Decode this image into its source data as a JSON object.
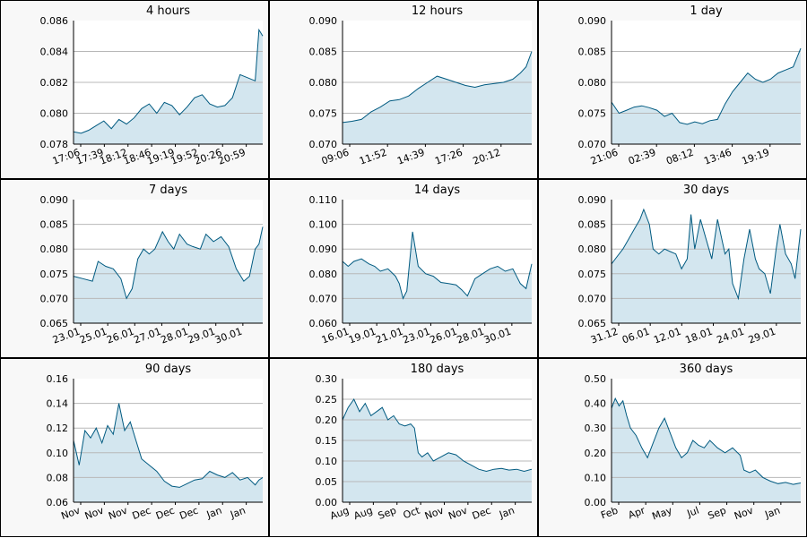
{
  "colors": {
    "line": "#005a80",
    "fill": "#d3e6ef",
    "grid": "#b8b8b8",
    "panel_bg": "#f8f8f8"
  },
  "chart_data": [
    {
      "type": "area",
      "title": "4 hours",
      "ylim": [
        0.078,
        0.086
      ],
      "yticks": [
        "0.078",
        "0.080",
        "0.082",
        "0.084",
        "0.086"
      ],
      "xticks": [
        "17:06",
        "17:39",
        "18:12",
        "18:46",
        "19:19",
        "19:52",
        "20:26",
        "20:59"
      ],
      "grid": true,
      "series": [
        {
          "x": [
            0,
            0.04,
            0.08,
            0.12,
            0.16,
            0.2,
            0.24,
            0.28,
            0.32,
            0.36,
            0.4,
            0.44,
            0.48,
            0.52,
            0.56,
            0.6,
            0.64,
            0.68,
            0.72,
            0.76,
            0.8,
            0.84,
            0.88,
            0.92,
            0.94,
            0.96,
            0.98,
            1.0
          ],
          "values": [
            0.0788,
            0.0787,
            0.0789,
            0.0792,
            0.0795,
            0.079,
            0.0796,
            0.0793,
            0.0797,
            0.0803,
            0.0806,
            0.08,
            0.0807,
            0.0805,
            0.0799,
            0.0804,
            0.081,
            0.0812,
            0.0806,
            0.0804,
            0.0805,
            0.081,
            0.0825,
            0.0823,
            0.0822,
            0.0821,
            0.0854,
            0.085
          ]
        }
      ]
    },
    {
      "type": "area",
      "title": "12 hours",
      "ylim": [
        0.07,
        0.09
      ],
      "yticks": [
        "0.070",
        "0.075",
        "0.080",
        "0.085",
        "0.090"
      ],
      "xticks": [
        "09:06",
        "11:52",
        "14:39",
        "17:26",
        "20:12"
      ],
      "grid": true,
      "series": [
        {
          "x": [
            0,
            0.05,
            0.1,
            0.15,
            0.2,
            0.25,
            0.3,
            0.35,
            0.4,
            0.45,
            0.5,
            0.55,
            0.6,
            0.65,
            0.7,
            0.75,
            0.8,
            0.85,
            0.9,
            0.94,
            0.97,
            1.0
          ],
          "values": [
            0.0735,
            0.0737,
            0.074,
            0.0752,
            0.076,
            0.077,
            0.0772,
            0.0778,
            0.079,
            0.08,
            0.081,
            0.0805,
            0.08,
            0.0795,
            0.0792,
            0.0796,
            0.0798,
            0.08,
            0.0805,
            0.0815,
            0.0825,
            0.085
          ]
        }
      ]
    },
    {
      "type": "area",
      "title": "1 day",
      "ylim": [
        0.07,
        0.09
      ],
      "yticks": [
        "0.070",
        "0.075",
        "0.080",
        "0.085",
        "0.090"
      ],
      "xticks": [
        "21:06",
        "02:39",
        "08:12",
        "13:46",
        "19:19"
      ],
      "grid": true,
      "series": [
        {
          "x": [
            0,
            0.04,
            0.08,
            0.12,
            0.16,
            0.2,
            0.24,
            0.28,
            0.32,
            0.36,
            0.4,
            0.44,
            0.48,
            0.52,
            0.56,
            0.6,
            0.64,
            0.68,
            0.72,
            0.76,
            0.8,
            0.84,
            0.88,
            0.92,
            0.96,
            1.0
          ],
          "values": [
            0.0768,
            0.075,
            0.0755,
            0.076,
            0.0762,
            0.0759,
            0.0755,
            0.0745,
            0.075,
            0.0735,
            0.0732,
            0.0736,
            0.0733,
            0.0738,
            0.074,
            0.0765,
            0.0785,
            0.08,
            0.0815,
            0.0805,
            0.08,
            0.0805,
            0.0815,
            0.082,
            0.0825,
            0.0855
          ]
        }
      ]
    },
    {
      "type": "area",
      "title": "7 days",
      "ylim": [
        0.065,
        0.09
      ],
      "yticks": [
        "0.065",
        "0.070",
        "0.075",
        "0.080",
        "0.085",
        "0.090"
      ],
      "xticks": [
        "23.01",
        "25.01",
        "26.01",
        "27.01",
        "28.01",
        "29.01",
        "30.01"
      ],
      "grid": true,
      "series": [
        {
          "x": [
            0,
            0.05,
            0.1,
            0.13,
            0.17,
            0.21,
            0.25,
            0.28,
            0.31,
            0.34,
            0.37,
            0.4,
            0.43,
            0.47,
            0.5,
            0.53,
            0.56,
            0.6,
            0.63,
            0.67,
            0.7,
            0.74,
            0.78,
            0.82,
            0.86,
            0.9,
            0.93,
            0.96,
            0.98,
            1.0
          ],
          "values": [
            0.0745,
            0.074,
            0.0735,
            0.0775,
            0.0765,
            0.076,
            0.074,
            0.07,
            0.072,
            0.078,
            0.08,
            0.079,
            0.08,
            0.0835,
            0.0815,
            0.08,
            0.083,
            0.081,
            0.0805,
            0.08,
            0.083,
            0.0815,
            0.0825,
            0.0805,
            0.076,
            0.0735,
            0.0745,
            0.08,
            0.081,
            0.0845
          ]
        }
      ]
    },
    {
      "type": "area",
      "title": "14 days",
      "ylim": [
        0.06,
        0.11
      ],
      "yticks": [
        "0.060",
        "0.070",
        "0.080",
        "0.090",
        "0.100",
        "0.110"
      ],
      "xticks": [
        "16.01",
        "19.01",
        "21.01",
        "23.01",
        "26.01",
        "28.01",
        "30.01"
      ],
      "grid": true,
      "series": [
        {
          "x": [
            0,
            0.03,
            0.06,
            0.1,
            0.14,
            0.17,
            0.2,
            0.24,
            0.28,
            0.3,
            0.32,
            0.34,
            0.37,
            0.4,
            0.44,
            0.48,
            0.52,
            0.56,
            0.6,
            0.63,
            0.66,
            0.7,
            0.74,
            0.78,
            0.82,
            0.86,
            0.9,
            0.94,
            0.97,
            1.0
          ],
          "values": [
            0.085,
            0.083,
            0.085,
            0.086,
            0.084,
            0.083,
            0.081,
            0.082,
            0.079,
            0.076,
            0.07,
            0.073,
            0.097,
            0.083,
            0.08,
            0.079,
            0.0765,
            0.076,
            0.0755,
            0.0735,
            0.071,
            0.078,
            0.08,
            0.082,
            0.083,
            0.081,
            0.082,
            0.076,
            0.074,
            0.084
          ]
        }
      ]
    },
    {
      "type": "area",
      "title": "30 days",
      "ylim": [
        0.065,
        0.09
      ],
      "yticks": [
        "0.065",
        "0.070",
        "0.075",
        "0.080",
        "0.085",
        "0.090"
      ],
      "xticks": [
        "31.12",
        "06.01",
        "12.01",
        "18.01",
        "24.01",
        "29.01"
      ],
      "grid": true,
      "series": [
        {
          "x": [
            0,
            0.03,
            0.06,
            0.09,
            0.12,
            0.15,
            0.17,
            0.2,
            0.22,
            0.25,
            0.28,
            0.31,
            0.34,
            0.37,
            0.4,
            0.42,
            0.44,
            0.47,
            0.5,
            0.53,
            0.56,
            0.6,
            0.62,
            0.64,
            0.67,
            0.7,
            0.73,
            0.76,
            0.78,
            0.81,
            0.84,
            0.87,
            0.89,
            0.92,
            0.95,
            0.97,
            1.0
          ],
          "values": [
            0.077,
            0.0785,
            0.08,
            0.082,
            0.084,
            0.086,
            0.088,
            0.085,
            0.08,
            0.079,
            0.08,
            0.0795,
            0.079,
            0.076,
            0.078,
            0.087,
            0.08,
            0.086,
            0.082,
            0.078,
            0.086,
            0.079,
            0.08,
            0.073,
            0.07,
            0.078,
            0.084,
            0.078,
            0.076,
            0.075,
            0.071,
            0.08,
            0.085,
            0.079,
            0.077,
            0.074,
            0.084
          ]
        }
      ]
    },
    {
      "type": "area",
      "title": "90 days",
      "ylim": [
        0.06,
        0.16
      ],
      "yticks": [
        "0.06",
        "0.08",
        "0.10",
        "0.12",
        "0.14",
        "0.16"
      ],
      "xticks": [
        "Nov",
        "Nov",
        "Nov",
        "Dec",
        "Dec",
        "Dec",
        "Jan",
        "Jan"
      ],
      "grid": true,
      "series": [
        {
          "x": [
            0,
            0.03,
            0.06,
            0.09,
            0.12,
            0.15,
            0.18,
            0.21,
            0.24,
            0.27,
            0.3,
            0.33,
            0.36,
            0.4,
            0.44,
            0.48,
            0.52,
            0.56,
            0.6,
            0.64,
            0.68,
            0.72,
            0.76,
            0.8,
            0.84,
            0.88,
            0.92,
            0.96,
            0.98,
            1.0
          ],
          "values": [
            0.11,
            0.09,
            0.118,
            0.112,
            0.12,
            0.108,
            0.122,
            0.115,
            0.14,
            0.118,
            0.125,
            0.11,
            0.095,
            0.09,
            0.085,
            0.077,
            0.073,
            0.072,
            0.075,
            0.078,
            0.079,
            0.085,
            0.082,
            0.08,
            0.084,
            0.078,
            0.08,
            0.074,
            0.078,
            0.08
          ]
        }
      ]
    },
    {
      "type": "area",
      "title": "180 days",
      "ylim": [
        0.0,
        0.3
      ],
      "yticks": [
        "0.00",
        "0.05",
        "0.10",
        "0.15",
        "0.20",
        "0.25",
        "0.30"
      ],
      "xticks": [
        "Aug",
        "Aug",
        "Sep",
        "Oct",
        "Nov",
        "Nov",
        "Dec",
        "Jan"
      ],
      "grid": true,
      "series": [
        {
          "x": [
            0,
            0.03,
            0.06,
            0.09,
            0.12,
            0.15,
            0.18,
            0.21,
            0.24,
            0.27,
            0.3,
            0.33,
            0.36,
            0.38,
            0.4,
            0.42,
            0.45,
            0.48,
            0.52,
            0.56,
            0.6,
            0.64,
            0.68,
            0.72,
            0.76,
            0.8,
            0.84,
            0.88,
            0.92,
            0.96,
            1.0
          ],
          "values": [
            0.2,
            0.23,
            0.25,
            0.22,
            0.24,
            0.21,
            0.22,
            0.23,
            0.2,
            0.21,
            0.19,
            0.185,
            0.19,
            0.18,
            0.12,
            0.11,
            0.12,
            0.1,
            0.11,
            0.12,
            0.115,
            0.1,
            0.09,
            0.08,
            0.075,
            0.08,
            0.082,
            0.078,
            0.08,
            0.075,
            0.08
          ]
        }
      ]
    },
    {
      "type": "area",
      "title": "360 days",
      "ylim": [
        0.0,
        0.5
      ],
      "yticks": [
        "0.00",
        "0.10",
        "0.20",
        "0.30",
        "0.40",
        "0.50"
      ],
      "xticks": [
        "Feb",
        "Apr",
        "May",
        "Jul",
        "Sep",
        "Nov",
        "Jan"
      ],
      "grid": true,
      "series": [
        {
          "x": [
            0,
            0.02,
            0.04,
            0.06,
            0.08,
            0.1,
            0.13,
            0.16,
            0.19,
            0.22,
            0.25,
            0.28,
            0.31,
            0.34,
            0.37,
            0.4,
            0.43,
            0.46,
            0.49,
            0.52,
            0.56,
            0.6,
            0.64,
            0.68,
            0.7,
            0.73,
            0.76,
            0.8,
            0.84,
            0.88,
            0.92,
            0.96,
            1.0
          ],
          "values": [
            0.38,
            0.42,
            0.39,
            0.41,
            0.35,
            0.3,
            0.27,
            0.22,
            0.18,
            0.24,
            0.3,
            0.34,
            0.28,
            0.22,
            0.18,
            0.2,
            0.25,
            0.23,
            0.22,
            0.25,
            0.22,
            0.2,
            0.22,
            0.19,
            0.13,
            0.12,
            0.13,
            0.1,
            0.085,
            0.075,
            0.08,
            0.072,
            0.078
          ]
        }
      ]
    }
  ]
}
